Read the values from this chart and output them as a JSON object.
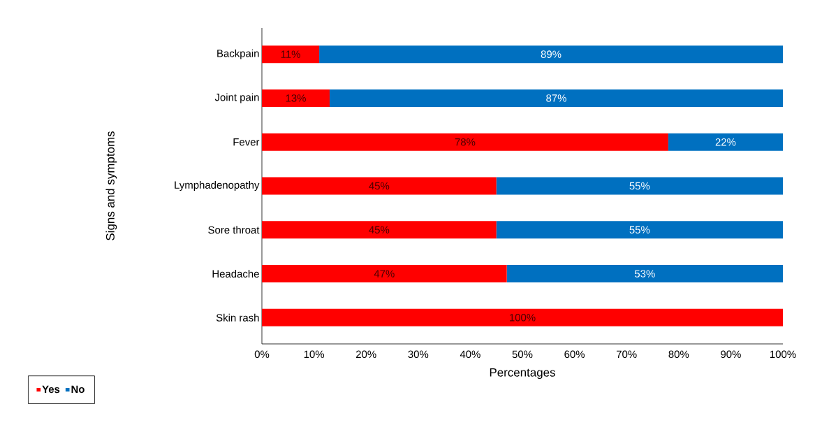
{
  "chart_data": {
    "type": "bar",
    "orientation": "horizontal",
    "stacked": true,
    "categories": [
      "Backpain",
      "Joint pain",
      "Fever",
      "Lymphadenopathy",
      "Sore throat",
      "Headache",
      "Skin rash"
    ],
    "series": [
      {
        "name": "Yes",
        "color": "#ff0000",
        "values": [
          11,
          13,
          78,
          45,
          45,
          47,
          100
        ],
        "value_labels": [
          "11%",
          "13%",
          "78%",
          "45%",
          "45%",
          "47%",
          "100%"
        ]
      },
      {
        "name": "No",
        "color": "#0070c0",
        "values": [
          89,
          87,
          22,
          55,
          55,
          53,
          0
        ],
        "value_labels": [
          "89%",
          "87%",
          "22%",
          "55%",
          "55%",
          "53%",
          null
        ]
      }
    ],
    "xlim": [
      0,
      100
    ],
    "xticks": [
      {
        "value": 0,
        "label": "0%"
      },
      {
        "value": 10,
        "label": "10%"
      },
      {
        "value": 20,
        "label": "20%"
      },
      {
        "value": 30,
        "label": "30%"
      },
      {
        "value": 40,
        "label": "40%"
      },
      {
        "value": 50,
        "label": "50%"
      },
      {
        "value": 60,
        "label": "60%"
      },
      {
        "value": 70,
        "label": "70%"
      },
      {
        "value": 80,
        "label": "80%"
      },
      {
        "value": 90,
        "label": "90%"
      },
      {
        "value": 100,
        "label": "100%"
      }
    ],
    "xlabel": "Percentages",
    "ylabel": "Signs and symptoms",
    "legend": "bottom left",
    "grid": false
  }
}
